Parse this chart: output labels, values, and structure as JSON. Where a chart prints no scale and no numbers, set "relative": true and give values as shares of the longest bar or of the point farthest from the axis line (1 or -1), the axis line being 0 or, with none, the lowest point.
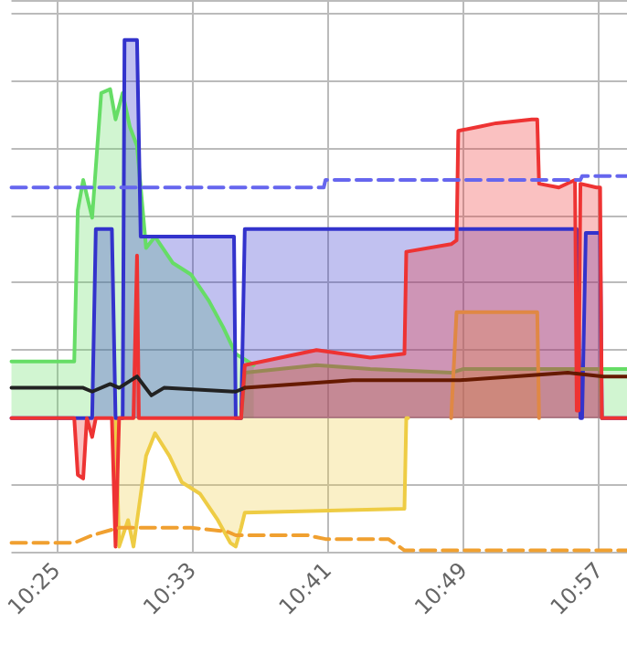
{
  "chart_data": {
    "type": "area",
    "relative": true,
    "grid": true,
    "tick_labels": "x",
    "marker": "none",
    "xlim": [
      10.3726,
      10.9775
    ],
    "xticks": [
      {
        "value": 10.4167,
        "label": "10:25"
      },
      {
        "value": 10.55,
        "label": "10:33"
      },
      {
        "value": 10.6833,
        "label": "10:41"
      },
      {
        "value": 10.8167,
        "label": "10:49"
      },
      {
        "value": 10.95,
        "label": "10:57"
      }
    ],
    "series": [
      {
        "color": "#66dd66",
        "x": [
          10.3726,
          10.4343,
          10.4378,
          10.4431,
          10.4519,
          10.4608,
          10.4696,
          10.4749,
          10.4819,
          10.489,
          10.496,
          10.5049,
          10.5137,
          10.5313,
          10.549,
          10.5666,
          10.5807,
          10.593,
          10.6107,
          10.6195,
          10.9546,
          10.9775
        ],
        "values": [
          0.15,
          0.15,
          0.55,
          0.63,
          0.53,
          0.86,
          0.87,
          0.79,
          0.86,
          0.77,
          0.72,
          0.45,
          0.48,
          0.41,
          0.38,
          0.31,
          0.24,
          0.17,
          0.14,
          null,
          0.13,
          0.13
        ]
      },
      {
        "color": "#eecc44",
        "x": [
          10.4713,
          10.4749,
          10.4784,
          10.4872,
          10.4925,
          10.5049,
          10.5137,
          10.5278,
          10.5401,
          10.5578,
          10.5754,
          10.5877,
          10.593,
          10.5983,
          10.6019,
          10.7588,
          10.7606,
          10.7624
        ],
        "values": [
          0,
          0,
          -0.34,
          -0.27,
          -0.34,
          -0.1,
          -0.04,
          -0.1,
          -0.17,
          -0.2,
          -0.27,
          -0.33,
          -0.34,
          -0.29,
          -0.25,
          -0.24,
          0,
          0
        ]
      },
      {
        "color": "#3333cc",
        "x": [
          10.3726,
          10.4519,
          10.4555,
          10.4713,
          10.4749,
          10.4819,
          10.4837,
          10.496,
          10.4996,
          10.5913,
          10.593,
          10.5983,
          10.6019,
          10.9281,
          10.9317,
          10.9334,
          10.937,
          10.9511,
          10.9528,
          10.9775
        ],
        "values": [
          0,
          0,
          0.5,
          0.5,
          0,
          0,
          1.0,
          1.0,
          0.48,
          0.48,
          0,
          0,
          0.5,
          0.5,
          0,
          0,
          0.49,
          0.49,
          0,
          0
        ]
      },
      {
        "color": "#998855",
        "x": [
          10.5983,
          10.6019,
          10.6724,
          10.7253,
          10.8047,
          10.817,
          10.8329,
          10.9511,
          10.9528
        ],
        "values": [
          0,
          0.12,
          0.14,
          0.13,
          0.12,
          0.13,
          0.13,
          0.13,
          0
        ]
      },
      {
        "color": "#ee3333",
        "x": [
          10.3726,
          10.4343,
          10.4378,
          10.4431,
          10.4467,
          10.4519,
          10.4555,
          10.4713,
          10.4749,
          10.4784,
          10.4925,
          10.496,
          10.4978,
          10.5983,
          10.6019,
          10.6724,
          10.7253,
          10.7588,
          10.7606,
          10.8047,
          10.81,
          10.8117,
          10.8311,
          10.8488,
          10.884,
          10.8893,
          10.8911,
          10.9105,
          10.9264,
          10.9281,
          10.9299,
          10.9317,
          10.9475,
          10.9511,
          10.9528,
          10.9775
        ],
        "values": [
          0,
          0,
          -0.15,
          -0.16,
          0,
          -0.05,
          0,
          0,
          -0.34,
          0,
          0,
          0.43,
          0,
          0,
          0.14,
          0.18,
          0.16,
          0.17,
          0.44,
          0.46,
          0.47,
          0.76,
          0.77,
          0.78,
          0.79,
          0.79,
          0.62,
          0.61,
          0.63,
          0.02,
          0.02,
          0.62,
          0.61,
          0.61,
          0,
          0
        ]
      },
      {
        "color": "#e08844",
        "x": [
          10.8047,
          10.81,
          10.8893,
          10.8911
        ],
        "values": [
          0,
          0.28,
          0.28,
          0
        ]
      },
      {
        "type": "line",
        "color": "#6666ee",
        "line_style": "dashed",
        "x": [
          10.3726,
          10.6795,
          10.6812,
          10.9317,
          10.9334,
          10.9775
        ],
        "values": [
          0.61,
          0.61,
          0.63,
          0.63,
          0.64,
          0.64
        ]
      },
      {
        "type": "line",
        "color": "#f0a030",
        "line_style": "dashed",
        "x": [
          10.3726,
          10.4343,
          10.4519,
          10.4784,
          10.549,
          10.5842,
          10.593,
          10.6636,
          10.6812,
          10.743,
          10.7588,
          10.9775
        ],
        "values": [
          -0.33,
          -0.33,
          -0.31,
          -0.29,
          -0.29,
          -0.3,
          -0.31,
          -0.31,
          -0.32,
          -0.32,
          -0.35,
          -0.35
        ]
      },
      {
        "type": "line",
        "color": "#222222",
        "x": [
          10.3726,
          10.4431,
          10.4519,
          10.4696,
          10.4784,
          10.496,
          10.5101,
          10.5225,
          10.593,
          10.6019
        ],
        "values": [
          0.08,
          0.08,
          0.07,
          0.09,
          0.08,
          0.11,
          0.06,
          0.08,
          0.07,
          0.08
        ]
      },
      {
        "type": "line",
        "color": "#661a00",
        "x": [
          10.6019,
          10.7077,
          10.8135,
          10.9193,
          10.9546,
          10.9775
        ],
        "values": [
          0.08,
          0.1,
          0.1,
          0.12,
          0.11,
          0.11
        ]
      }
    ]
  }
}
